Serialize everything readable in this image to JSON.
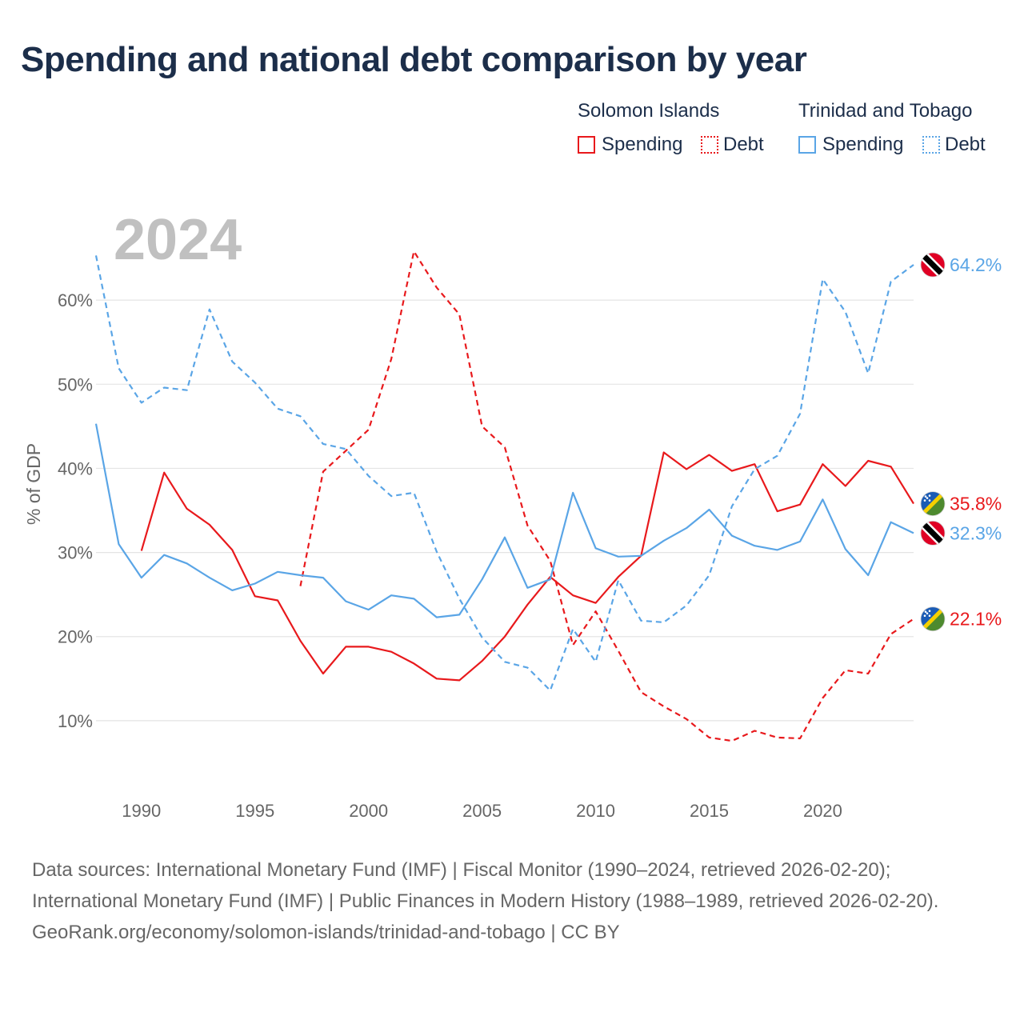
{
  "title": "Spending and national debt comparison by year",
  "legend": {
    "groups": [
      {
        "name": "Solomon Islands",
        "spending_label": "Spending",
        "debt_label": "Debt",
        "color": "#e8191c"
      },
      {
        "name": "Trinidad and Tobago",
        "spending_label": "Spending",
        "debt_label": "Debt",
        "color": "#5aa5e6"
      }
    ]
  },
  "chart_data": {
    "type": "line",
    "year_label": "2024",
    "ylabel": "% of GDP",
    "xlim": [
      1988,
      2024
    ],
    "ylim": [
      2,
      70
    ],
    "x_ticks": [
      1990,
      1995,
      2000,
      2005,
      2010,
      2015,
      2020
    ],
    "x_tick_labels": [
      "1990",
      "1995",
      "2000",
      "2005",
      "2010",
      "2015",
      "2020"
    ],
    "y_ticks": [
      10,
      20,
      30,
      40,
      50,
      60
    ],
    "y_tick_labels": [
      "10%",
      "20%",
      "30%",
      "40%",
      "50%",
      "60%"
    ],
    "grid": true,
    "series": [
      {
        "name": "Solomon Islands Spending",
        "country": "Solomon Islands",
        "metric": "Spending",
        "color": "#e8191c",
        "dashed": false,
        "end_label": "35.8%",
        "points": [
          [
            1990,
            30.2
          ],
          [
            1991,
            39.5
          ],
          [
            1992,
            35.2
          ],
          [
            1993,
            33.3
          ],
          [
            1994,
            30.3
          ],
          [
            1995,
            24.8
          ],
          [
            1996,
            24.3
          ],
          [
            1997,
            19.5
          ],
          [
            1998,
            15.6
          ],
          [
            1999,
            18.8
          ],
          [
            2000,
            18.8
          ],
          [
            2001,
            18.2
          ],
          [
            2002,
            16.8
          ],
          [
            2003,
            15.0
          ],
          [
            2004,
            14.8
          ],
          [
            2005,
            17.1
          ],
          [
            2006,
            20.0
          ],
          [
            2007,
            23.8
          ],
          [
            2008,
            27.1
          ],
          [
            2009,
            24.9
          ],
          [
            2010,
            24.0
          ],
          [
            2011,
            27.1
          ],
          [
            2012,
            29.6
          ],
          [
            2013,
            41.9
          ],
          [
            2014,
            39.9
          ],
          [
            2015,
            41.6
          ],
          [
            2016,
            39.7
          ],
          [
            2017,
            40.5
          ],
          [
            2018,
            34.9
          ],
          [
            2019,
            35.7
          ],
          [
            2020,
            40.5
          ],
          [
            2021,
            37.9
          ],
          [
            2022,
            40.9
          ],
          [
            2023,
            40.2
          ],
          [
            2024,
            35.8
          ]
        ]
      },
      {
        "name": "Solomon Islands Debt",
        "country": "Solomon Islands",
        "metric": "Debt",
        "color": "#e8191c",
        "dashed": true,
        "end_label": "22.1%",
        "points": [
          [
            1997,
            26.0
          ],
          [
            1998,
            39.6
          ],
          [
            1999,
            42.1
          ],
          [
            2000,
            44.6
          ],
          [
            2001,
            53.0
          ],
          [
            2002,
            65.8
          ],
          [
            2003,
            61.5
          ],
          [
            2004,
            58.3
          ],
          [
            2005,
            45.0
          ],
          [
            2006,
            42.5
          ],
          [
            2007,
            33.2
          ],
          [
            2008,
            29.0
          ],
          [
            2009,
            19.0
          ],
          [
            2010,
            23.0
          ],
          [
            2011,
            18.3
          ],
          [
            2012,
            13.4
          ],
          [
            2013,
            11.7
          ],
          [
            2014,
            10.2
          ],
          [
            2015,
            8.0
          ],
          [
            2016,
            7.6
          ],
          [
            2017,
            8.8
          ],
          [
            2018,
            8.0
          ],
          [
            2019,
            7.9
          ],
          [
            2020,
            12.7
          ],
          [
            2021,
            16.0
          ],
          [
            2022,
            15.6
          ],
          [
            2023,
            20.3
          ],
          [
            2024,
            22.1
          ]
        ]
      },
      {
        "name": "Trinidad and Tobago Spending",
        "country": "Trinidad and Tobago",
        "metric": "Spending",
        "color": "#5aa5e6",
        "dashed": false,
        "end_label": "32.3%",
        "points": [
          [
            1988,
            45.3
          ],
          [
            1989,
            31.0
          ],
          [
            1990,
            27.0
          ],
          [
            1991,
            29.7
          ],
          [
            1992,
            28.7
          ],
          [
            1993,
            27.0
          ],
          [
            1994,
            25.5
          ],
          [
            1995,
            26.3
          ],
          [
            1996,
            27.7
          ],
          [
            1997,
            27.3
          ],
          [
            1998,
            27.0
          ],
          [
            1999,
            24.2
          ],
          [
            2000,
            23.2
          ],
          [
            2001,
            24.9
          ],
          [
            2002,
            24.5
          ],
          [
            2003,
            22.3
          ],
          [
            2004,
            22.6
          ],
          [
            2005,
            26.8
          ],
          [
            2006,
            31.8
          ],
          [
            2007,
            25.8
          ],
          [
            2008,
            26.8
          ],
          [
            2009,
            37.1
          ],
          [
            2010,
            30.5
          ],
          [
            2011,
            29.5
          ],
          [
            2012,
            29.6
          ],
          [
            2013,
            31.4
          ],
          [
            2014,
            32.9
          ],
          [
            2015,
            35.1
          ],
          [
            2016,
            32.0
          ],
          [
            2017,
            30.8
          ],
          [
            2018,
            30.3
          ],
          [
            2019,
            31.3
          ],
          [
            2020,
            36.3
          ],
          [
            2021,
            30.4
          ],
          [
            2022,
            27.3
          ],
          [
            2023,
            33.6
          ],
          [
            2024,
            32.3
          ]
        ]
      },
      {
        "name": "Trinidad and Tobago Debt",
        "country": "Trinidad and Tobago",
        "metric": "Debt",
        "color": "#5aa5e6",
        "dashed": true,
        "end_label": "64.2%",
        "points": [
          [
            1988,
            65.3
          ],
          [
            1989,
            51.9
          ],
          [
            1990,
            47.8
          ],
          [
            1991,
            49.6
          ],
          [
            1992,
            49.3
          ],
          [
            1993,
            58.9
          ],
          [
            1994,
            52.7
          ],
          [
            1995,
            50.2
          ],
          [
            1996,
            47.1
          ],
          [
            1997,
            46.2
          ],
          [
            1998,
            42.9
          ],
          [
            1999,
            42.3
          ],
          [
            2000,
            39.1
          ],
          [
            2001,
            36.7
          ],
          [
            2002,
            37.1
          ],
          [
            2003,
            30.1
          ],
          [
            2004,
            24.5
          ],
          [
            2005,
            19.9
          ],
          [
            2006,
            17.0
          ],
          [
            2007,
            16.3
          ],
          [
            2008,
            13.6
          ],
          [
            2009,
            20.9
          ],
          [
            2010,
            17.0
          ],
          [
            2011,
            26.7
          ],
          [
            2012,
            21.9
          ],
          [
            2013,
            21.7
          ],
          [
            2014,
            23.7
          ],
          [
            2015,
            27.3
          ],
          [
            2016,
            35.5
          ],
          [
            2017,
            39.9
          ],
          [
            2018,
            41.5
          ],
          [
            2019,
            46.5
          ],
          [
            2020,
            62.5
          ],
          [
            2021,
            58.6
          ],
          [
            2022,
            51.3
          ],
          [
            2023,
            62.2
          ],
          [
            2024,
            64.2
          ]
        ]
      }
    ]
  },
  "footer": {
    "sources": "Data sources: International Monetary Fund (IMF) | Fiscal Monitor (1990–2024, retrieved 2026-02-20); International Monetary Fund (IMF) | Public Finances in Modern History (1988–1989, retrieved 2026-02-20).",
    "attribution": "GeoRank.org/economy/solomon-islands/trinidad-and-tobago | CC BY"
  }
}
